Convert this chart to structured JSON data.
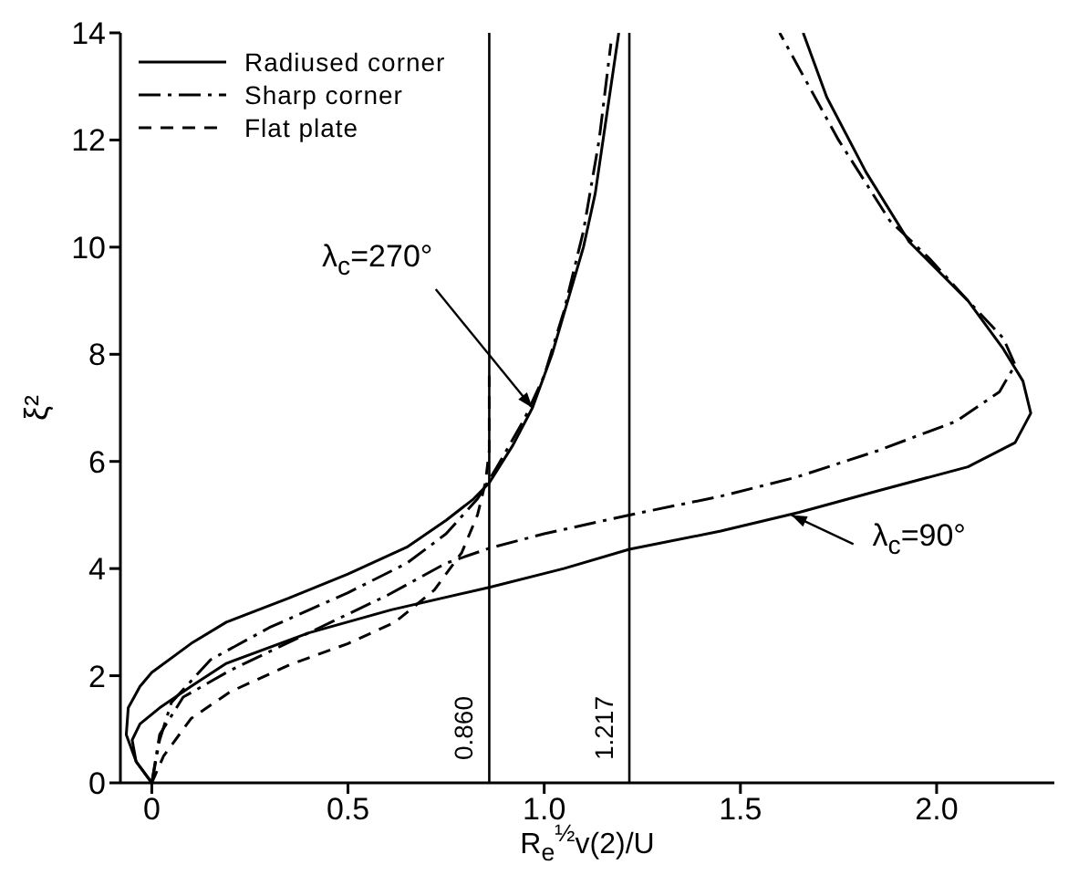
{
  "chart_data": {
    "type": "line",
    "xlabel": "R$_{e}$$^{½}$v(2)/U",
    "ylabel": "ξ²",
    "xlim": [
      -0.08,
      2.3
    ],
    "xticks": [
      0,
      0.5,
      {
        "value": 1.0,
        "label": "1.0"
      },
      1.5,
      {
        "value": 2.0,
        "label": "2.0"
      }
    ],
    "ylim": [
      0,
      14
    ],
    "yticks": [
      0,
      2,
      4,
      6,
      8,
      10,
      12,
      14
    ],
    "grid": false,
    "legend": "top left",
    "marker": "none",
    "series": [
      {
        "name": "Radiused corner",
        "color": "#000000",
        "line_style": "solid",
        "x": [
          0,
          -0.04,
          -0.065,
          -0.06,
          -0.03,
          0,
          0.1,
          0.19,
          0.35,
          0.5,
          0.65,
          0.75,
          0.82,
          0.86,
          0.92,
          0.97,
          1.02,
          1.06,
          1.1,
          1.13,
          1.16,
          1.19
        ],
        "values": [
          0,
          0.4,
          0.9,
          1.4,
          1.8,
          2.06,
          2.6,
          3.0,
          3.45,
          3.9,
          4.4,
          4.9,
          5.3,
          5.6,
          6.3,
          7.0,
          8.0,
          9.0,
          10.0,
          11.0,
          12.5,
          14
        ]
      },
      {
        "name": "Sharp corner",
        "color": "#000000",
        "line_style": "dashdot",
        "x": [
          0,
          0.02,
          0.05,
          0.15,
          0.3,
          0.5,
          0.65,
          0.75,
          0.83,
          0.88,
          0.95,
          1.0,
          1.05,
          1.1,
          1.14,
          1.17
        ],
        "values": [
          0,
          0.8,
          1.5,
          2.3,
          2.9,
          3.55,
          4.1,
          4.65,
          5.3,
          5.9,
          6.8,
          7.6,
          8.8,
          10.3,
          12,
          13.8
        ]
      },
      {
        "name": "Flat plate",
        "color": "#000000",
        "line_style": "dashed",
        "x": [
          0,
          0.03,
          0.1,
          0.2,
          0.35,
          0.5,
          0.62,
          0.72,
          0.79,
          0.83,
          0.85,
          0.86,
          0.86
        ],
        "values": [
          0,
          0.5,
          1.2,
          1.7,
          2.2,
          2.6,
          3.0,
          3.6,
          4.3,
          5.0,
          5.6,
          6.2,
          7.6
        ]
      },
      {
        "color": "#000000",
        "line_style": "solid",
        "x": [
          0,
          -0.04,
          -0.05,
          -0.03,
          0.02,
          0.1,
          0.19,
          0.4,
          0.61,
          0.86,
          1.05,
          1.217,
          1.45,
          1.65,
          1.85,
          2.08,
          2.2,
          2.24,
          2.22,
          2.17,
          2.08,
          1.93,
          1.82,
          1.72,
          1.66
        ],
        "values": [
          0,
          0.4,
          0.8,
          1.1,
          1.4,
          1.8,
          2.23,
          2.8,
          3.23,
          3.65,
          4.0,
          4.36,
          4.7,
          5.05,
          5.45,
          5.9,
          6.35,
          6.9,
          7.5,
          8.1,
          9.0,
          10.1,
          11.4,
          12.8,
          14
        ]
      },
      {
        "color": "#000000",
        "line_style": "dashdot",
        "x": [
          0,
          0.02,
          0.08,
          0.2,
          0.4,
          0.6,
          0.75,
          0.86,
          1.0,
          1.217,
          1.45,
          1.64,
          1.85,
          2.05,
          2.16,
          2.2,
          2.17,
          2.08,
          1.98,
          1.88,
          1.75,
          1.6
        ],
        "values": [
          0,
          0.9,
          1.6,
          2.1,
          2.8,
          3.5,
          4.1,
          4.38,
          4.65,
          5.0,
          5.35,
          5.7,
          6.2,
          6.75,
          7.3,
          7.8,
          8.3,
          9.0,
          9.8,
          10.5,
          12.0,
          14.0
        ]
      }
    ],
    "ref_lines": [
      {
        "axis": "x",
        "value": 0.86,
        "label": "0.860",
        "color": "#000000"
      },
      {
        "axis": "x",
        "value": 1.217,
        "label": "1.217",
        "color": "#000000"
      }
    ],
    "annotations": [
      {
        "text": "λ$_{c}$=270°",
        "x": 0.97,
        "y": 7.0
      },
      {
        "text": "λ$_{c}$=90°",
        "x": 1.63,
        "y": 5.0
      }
    ]
  }
}
